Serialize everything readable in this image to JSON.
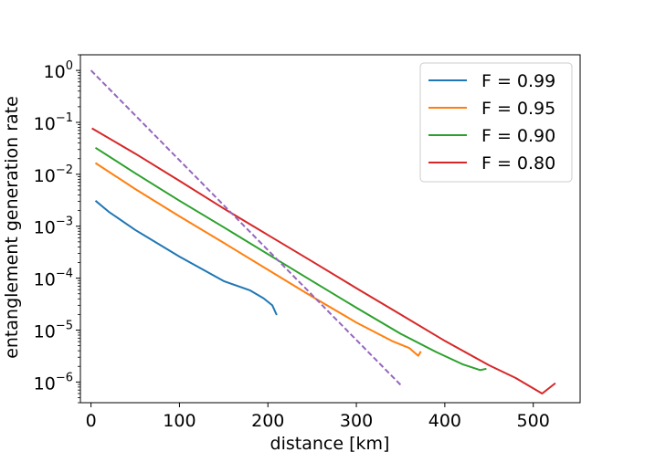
{
  "chart_data": {
    "type": "line",
    "xlabel": "distance [km]",
    "ylabel": "entanglement generation rate",
    "xscale": "linear",
    "yscale": "log",
    "xlim": [
      -12,
      553
    ],
    "ylim": [
      4e-07,
      2.0
    ],
    "xticks": [
      0,
      100,
      200,
      300,
      400,
      500
    ],
    "xtick_labels": [
      "0",
      "100",
      "200",
      "300",
      "400",
      "500"
    ],
    "yticks": [
      1e-06,
      1e-05,
      0.0001,
      0.001,
      0.01,
      0.1,
      1.0
    ],
    "ytick_labels": [
      {
        "base": "10",
        "exp": "−6"
      },
      {
        "base": "10",
        "exp": "−5"
      },
      {
        "base": "10",
        "exp": "−4"
      },
      {
        "base": "10",
        "exp": "−3"
      },
      {
        "base": "10",
        "exp": "−2"
      },
      {
        "base": "10",
        "exp": "−1"
      },
      {
        "base": "10",
        "exp": "0"
      }
    ],
    "grid": false,
    "legend_position": "top-right",
    "series": [
      {
        "name": "F = 0.99",
        "color": "#1f77b4",
        "linestyle": "solid",
        "x": [
          5,
          20,
          50,
          100,
          150,
          180,
          195,
          205,
          210
        ],
        "y": [
          0.0031,
          0.0019,
          0.00085,
          0.00026,
          8.8e-05,
          5.8e-05,
          4.1e-05,
          3e-05,
          1.95e-05
        ]
      },
      {
        "name": "F = 0.95",
        "color": "#ff7f0e",
        "linestyle": "solid",
        "x": [
          5,
          50,
          100,
          150,
          200,
          250,
          300,
          340,
          360,
          370,
          373
        ],
        "y": [
          0.0165,
          0.0052,
          0.00155,
          0.00048,
          0.000145,
          4.4e-05,
          1.4e-05,
          6.2e-06,
          4.5e-06,
          3.2e-06,
          3.9e-06
        ]
      },
      {
        "name": "F = 0.90",
        "color": "#2ca02c",
        "linestyle": "solid",
        "x": [
          5,
          50,
          100,
          150,
          200,
          250,
          300,
          350,
          390,
          420,
          440,
          447
        ],
        "y": [
          0.0325,
          0.0105,
          0.0031,
          0.00096,
          0.00029,
          8.8e-05,
          2.7e-05,
          8.5e-06,
          3.8e-06,
          2.2e-06,
          1.7e-06,
          1.8e-06
        ]
      },
      {
        "name": "F = 0.80",
        "color": "#d62728",
        "linestyle": "solid",
        "x": [
          1,
          50,
          100,
          150,
          200,
          250,
          300,
          350,
          400,
          450,
          480,
          510,
          525
        ],
        "y": [
          0.077,
          0.025,
          0.0075,
          0.0022,
          0.00068,
          0.00021,
          6.4e-05,
          2e-05,
          6.2e-06,
          2.1e-06,
          1.2e-06,
          6e-07,
          9.5e-07
        ]
      },
      {
        "name": "",
        "color": "#9467bd",
        "linestyle": "dashed",
        "x": [
          0,
          350
        ],
        "y": [
          1.0,
          8.8e-07
        ]
      }
    ]
  }
}
